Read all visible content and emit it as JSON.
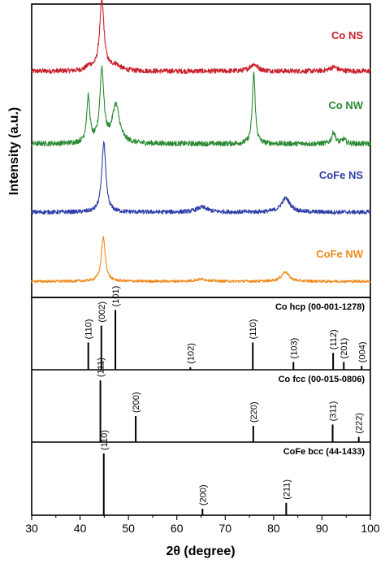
{
  "chart_data": {
    "type": "line",
    "xlabel": "2θ (degree)",
    "ylabel": "Intensity (a.u.)",
    "xlim": [
      30,
      100
    ],
    "xticks": [
      30,
      40,
      50,
      60,
      70,
      80,
      90,
      100
    ],
    "series": [
      {
        "name": "Co NS",
        "color": "#c8202a",
        "baseline": 0.12,
        "noise": 0.035,
        "peaks": [
          {
            "x": 44.5,
            "h": 1.0,
            "w": 0.55
          },
          {
            "x": 41.9,
            "h": 0.06,
            "w": 0.8
          },
          {
            "x": 47.3,
            "h": 0.08,
            "w": 1.2
          },
          {
            "x": 75.9,
            "h": 0.1,
            "w": 1.0
          },
          {
            "x": 92.4,
            "h": 0.06,
            "w": 1.0
          }
        ]
      },
      {
        "name": "Co NW",
        "color": "#2b8a33",
        "baseline": 0.1,
        "noise": 0.035,
        "peaks": [
          {
            "x": 41.7,
            "h": 0.62,
            "w": 0.4
          },
          {
            "x": 44.5,
            "h": 1.0,
            "w": 0.5
          },
          {
            "x": 47.4,
            "h": 0.52,
            "w": 0.9
          },
          {
            "x": 75.9,
            "h": 0.98,
            "w": 0.35
          },
          {
            "x": 92.4,
            "h": 0.16,
            "w": 0.45
          },
          {
            "x": 94.5,
            "h": 0.06,
            "w": 0.5
          }
        ]
      },
      {
        "name": "CoFe NS",
        "color": "#2f3fa8",
        "baseline": 0.08,
        "noise": 0.03,
        "peaks": [
          {
            "x": 44.9,
            "h": 1.0,
            "w": 0.5
          },
          {
            "x": 65.2,
            "h": 0.07,
            "w": 1.4
          },
          {
            "x": 82.5,
            "h": 0.2,
            "w": 1.1
          }
        ]
      },
      {
        "name": "CoFe NW",
        "color": "#f08a1c",
        "baseline": 0.07,
        "noise": 0.03,
        "peaks": [
          {
            "x": 44.8,
            "h": 1.0,
            "w": 0.5
          },
          {
            "x": 65.1,
            "h": 0.05,
            "w": 1.4
          },
          {
            "x": 82.4,
            "h": 0.22,
            "w": 0.9
          }
        ]
      }
    ],
    "references": [
      {
        "title": "Co hcp (00-001-1278)",
        "lines": [
          {
            "x": 41.7,
            "label": "(110)",
            "h": 0.42
          },
          {
            "x": 44.4,
            "label": "(002)",
            "h": 0.68
          },
          {
            "x": 47.3,
            "label": "(101)",
            "h": 0.92
          },
          {
            "x": 62.8,
            "label": "(102)",
            "h": 0.04
          },
          {
            "x": 75.7,
            "label": "(110)",
            "h": 0.42
          },
          {
            "x": 84.1,
            "label": "(103)",
            "h": 0.12
          },
          {
            "x": 92.3,
            "label": "(112)",
            "h": 0.26
          },
          {
            "x": 94.5,
            "label": "(201)",
            "h": 0.12
          },
          {
            "x": 98.2,
            "label": "(004)",
            "h": 0.06
          }
        ]
      },
      {
        "title": "Co fcc (00-015-0806)",
        "lines": [
          {
            "x": 44.2,
            "label": "(111)",
            "h": 0.95
          },
          {
            "x": 51.5,
            "label": "(200)",
            "h": 0.4
          },
          {
            "x": 75.8,
            "label": "(220)",
            "h": 0.25
          },
          {
            "x": 92.2,
            "label": "(311)",
            "h": 0.27
          },
          {
            "x": 97.6,
            "label": "(222)",
            "h": 0.08
          }
        ]
      },
      {
        "title": "CoFe bcc (44-1433)",
        "lines": [
          {
            "x": 44.9,
            "label": "(110)",
            "h": 0.95
          },
          {
            "x": 65.3,
            "label": "(200)",
            "h": 0.1
          },
          {
            "x": 82.6,
            "label": "(211)",
            "h": 0.19
          }
        ]
      }
    ]
  }
}
